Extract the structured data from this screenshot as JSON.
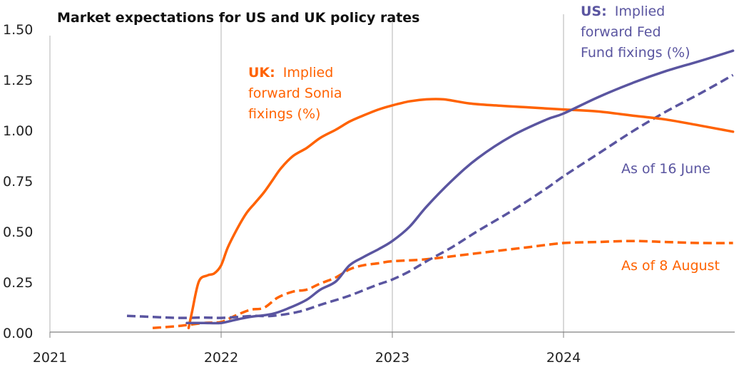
{
  "chart_data": {
    "type": "line",
    "title": "Market expectations for US and UK policy rates",
    "xlabel": "",
    "ylabel": "",
    "xlim": [
      2021,
      2025
    ],
    "ylim": [
      0,
      1.5
    ],
    "x_ticks": [
      "2021",
      "2022",
      "2023",
      "2024"
    ],
    "x_tick_values": [
      2021,
      2022,
      2023,
      2024
    ],
    "y_ticks": [
      "0.00",
      "0.25",
      "0.50",
      "0.75",
      "1.00",
      "1.25",
      "1.50"
    ],
    "y_tick_values": [
      0,
      0.25,
      0.5,
      0.75,
      1.0,
      1.25,
      1.5
    ],
    "grid": "vertical",
    "colors": {
      "uk": "#ff6200",
      "us": "#5a55a0",
      "grid": "#d9d9d9",
      "axis": "#808080"
    },
    "series": [
      {
        "name": "UK: Implied forward Sonia fixings (%) — As of 8 August",
        "country": "UK",
        "style": "solid",
        "color": "#ff6200",
        "x": [
          2021.81,
          2021.83,
          2021.87,
          2021.92,
          2021.96,
          2022.0,
          2022.04,
          2022.1,
          2022.15,
          2022.2,
          2022.25,
          2022.3,
          2022.35,
          2022.42,
          2022.5,
          2022.58,
          2022.67,
          2022.75,
          2022.83,
          2022.92,
          2023.0,
          2023.1,
          2023.2,
          2023.3,
          2023.45,
          2023.6,
          2023.8,
          2024.0,
          2024.2,
          2024.4,
          2024.6,
          2024.8,
          2024.99
        ],
        "y": [
          0.02,
          0.1,
          0.25,
          0.28,
          0.29,
          0.33,
          0.42,
          0.52,
          0.59,
          0.64,
          0.69,
          0.75,
          0.81,
          0.87,
          0.91,
          0.96,
          1.0,
          1.04,
          1.07,
          1.1,
          1.12,
          1.14,
          1.15,
          1.15,
          1.13,
          1.12,
          1.11,
          1.1,
          1.09,
          1.07,
          1.05,
          1.02,
          0.99
        ]
      },
      {
        "name": "UK: Implied forward Sonia fixings (%) — As of 16 June",
        "country": "UK",
        "style": "dashed",
        "color": "#ff6200",
        "x": [
          2021.6,
          2021.75,
          2021.9,
          2022.0,
          2022.08,
          2022.17,
          2022.25,
          2022.33,
          2022.42,
          2022.5,
          2022.58,
          2022.67,
          2022.75,
          2022.83,
          2022.92,
          2023.0,
          2023.2,
          2023.4,
          2023.6,
          2023.8,
          2024.0,
          2024.2,
          2024.4,
          2024.6,
          2024.8,
          2024.99
        ],
        "y": [
          0.02,
          0.03,
          0.045,
          0.05,
          0.08,
          0.11,
          0.12,
          0.17,
          0.2,
          0.21,
          0.24,
          0.27,
          0.31,
          0.33,
          0.34,
          0.35,
          0.36,
          0.38,
          0.4,
          0.42,
          0.44,
          0.445,
          0.45,
          0.445,
          0.44,
          0.44
        ]
      },
      {
        "name": "US: Implied forward Fed Fund fixings (%) — As of 8 August",
        "country": "US",
        "style": "solid",
        "color": "#5a55a0",
        "x": [
          2021.8,
          2021.9,
          2022.0,
          2022.08,
          2022.17,
          2022.3,
          2022.4,
          2022.5,
          2022.58,
          2022.67,
          2022.75,
          2022.83,
          2022.92,
          2023.0,
          2023.1,
          2023.2,
          2023.35,
          2023.5,
          2023.7,
          2023.9,
          2024.0,
          2024.2,
          2024.4,
          2024.6,
          2024.8,
          2024.99
        ],
        "y": [
          0.045,
          0.045,
          0.045,
          0.06,
          0.075,
          0.09,
          0.12,
          0.16,
          0.21,
          0.25,
          0.33,
          0.37,
          0.41,
          0.45,
          0.52,
          0.62,
          0.75,
          0.86,
          0.97,
          1.05,
          1.08,
          1.16,
          1.23,
          1.29,
          1.34,
          1.39
        ]
      },
      {
        "name": "US: Implied forward Fed Fund fixings (%) — As of 16 June",
        "country": "US",
        "style": "dashed",
        "color": "#5a55a0",
        "x": [
          2021.45,
          2021.6,
          2021.75,
          2021.9,
          2022.0,
          2022.1,
          2022.2,
          2022.3,
          2022.45,
          2022.6,
          2022.75,
          2022.9,
          2023.0,
          2023.1,
          2023.2,
          2023.35,
          2023.5,
          2023.7,
          2023.9,
          2024.0,
          2024.2,
          2024.4,
          2024.6,
          2024.8,
          2024.99
        ],
        "y": [
          0.08,
          0.075,
          0.07,
          0.072,
          0.07,
          0.075,
          0.08,
          0.08,
          0.1,
          0.14,
          0.18,
          0.23,
          0.26,
          0.3,
          0.35,
          0.42,
          0.5,
          0.6,
          0.71,
          0.77,
          0.88,
          0.99,
          1.09,
          1.18,
          1.27
        ]
      }
    ],
    "annotations": [
      {
        "id": "uk_label",
        "bold": "UK:",
        "lines": [
          "Implied",
          "forward Sonia",
          "fixings (%)"
        ],
        "color": "#ff6200"
      },
      {
        "id": "us_label",
        "bold": "US:",
        "lines": [
          "Implied",
          "forward Fed",
          "Fund fixings (%)"
        ],
        "color": "#5a55a0"
      },
      {
        "id": "june_label",
        "text": "As of 16 June",
        "color": "#5a55a0"
      },
      {
        "id": "august_label",
        "text": "As of 8 August",
        "color": "#ff6200"
      }
    ]
  }
}
